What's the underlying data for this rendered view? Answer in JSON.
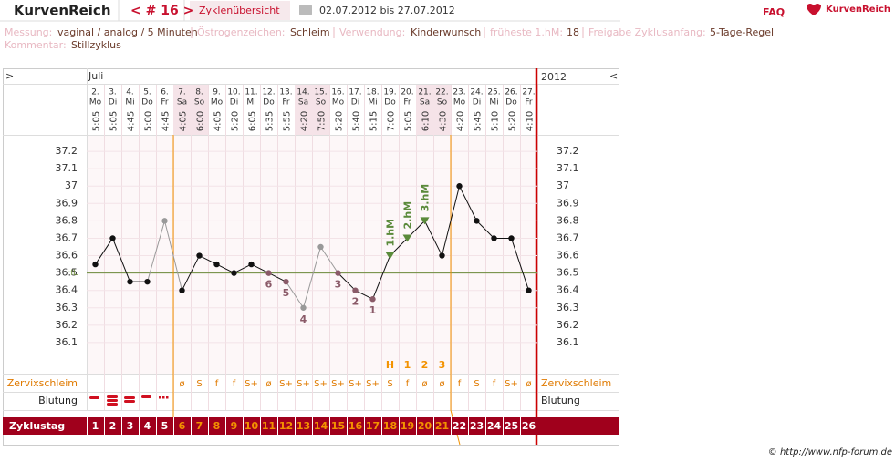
{
  "header": {
    "logo": "KurvenReich",
    "cycle": "< # 16 >",
    "tab": "Zyklenübersicht",
    "dates": "02.07.2012 bis 27.07.2012",
    "faq": "FAQ",
    "brand": "KurvenReich"
  },
  "info": [
    {
      "label": "Messung:",
      "value": "vaginal / analog / 5 Minuten"
    },
    {
      "label": "Östrogenzeichen:",
      "value": "Schleim"
    },
    {
      "label": "Verwendung:",
      "value": "Kinderwunsch"
    },
    {
      "label": "früheste 1.hM:",
      "value": 18
    },
    {
      "label": "Freigabe Zyklusanfang:",
      "value": "5-Tage-Regel"
    },
    {
      "label": "Kommentar:",
      "value": "Stillzyklus"
    }
  ],
  "chart_data": {
    "type": "line",
    "month": "Juli",
    "year": "2012",
    "nav_left": ">",
    "nav_right": "<",
    "categories": [
      "2.",
      "3.",
      "4.",
      "5.",
      "6.",
      "7.",
      "8.",
      "9.",
      "10.",
      "11.",
      "12.",
      "13.",
      "14.",
      "15.",
      "16.",
      "17.",
      "18.",
      "19.",
      "20.",
      "21.",
      "22.",
      "23.",
      "24.",
      "25.",
      "26.",
      "27."
    ],
    "weekdays": [
      "Mo",
      "Di",
      "Mi",
      "Do",
      "Fr",
      "Sa",
      "So",
      "Mo",
      "Di",
      "Mi",
      "Do",
      "Fr",
      "Sa",
      "So",
      "Mo",
      "Di",
      "Mi",
      "Do",
      "Fr",
      "Sa",
      "So",
      "Mo",
      "Di",
      "Mi",
      "Do",
      "Fr"
    ],
    "times": [
      "5:05",
      "5:05",
      "4:45",
      "5:00",
      "4:45",
      "4:05",
      "6:00",
      "4:05",
      "5:20",
      "6:05",
      "5:35",
      "5:55",
      "4:20",
      "7:50",
      "5:20",
      "5:40",
      "5:15",
      "7:00",
      "5:05",
      "6:10",
      "4:30",
      "4:20",
      "5:45",
      "5:10",
      "5:20",
      "4:10"
    ],
    "weekend": [
      false,
      false,
      false,
      false,
      false,
      true,
      true,
      false,
      false,
      false,
      false,
      false,
      true,
      true,
      false,
      false,
      false,
      false,
      false,
      true,
      true,
      false,
      false,
      false,
      false,
      false
    ],
    "weekend_color": "#f5e3e8",
    "series": [
      {
        "color": "#111111",
        "excluded_color": "#999999",
        "values": [
          36.55,
          36.7,
          36.45,
          36.45,
          36.8,
          36.4,
          36.6,
          36.55,
          36.5,
          36.55,
          36.5,
          36.45,
          36.3,
          36.65,
          36.5,
          36.4,
          36.35,
          36.6,
          36.7,
          36.8,
          36.6,
          37.0,
          36.8,
          36.7,
          36.7,
          36.4
        ],
        "point_colors": [
          "#111111",
          "#111111",
          "#111111",
          "#111111",
          "#999999",
          "#111111",
          "#111111",
          "#111111",
          "#111111",
          "#111111",
          "#8a5a68",
          "#8a5a68",
          "#999999",
          "#999999",
          "#8a5a68",
          "#8a5a68",
          "#8a5a68",
          "#5a8a3a",
          "#5a8a3a",
          "#5a8a3a",
          "#111111",
          "#111111",
          "#111111",
          "#111111",
          "#111111",
          "#111111"
        ]
      }
    ],
    "low_labels": [
      null,
      null,
      null,
      null,
      null,
      null,
      null,
      null,
      null,
      null,
      "6",
      "5",
      "4",
      null,
      "3",
      "2",
      "1",
      null,
      null,
      null,
      null,
      null,
      null,
      null,
      null,
      null
    ],
    "low_color": "#8a5a68",
    "hm_labels": [
      null,
      null,
      null,
      null,
      null,
      null,
      null,
      null,
      null,
      null,
      null,
      null,
      null,
      null,
      null,
      null,
      null,
      "1.hM",
      "2.hM",
      "3.hM",
      null,
      null,
      null,
      null,
      null,
      null
    ],
    "hm_color": "#5a8a3a",
    "peak_labels": [
      null,
      null,
      null,
      null,
      null,
      null,
      null,
      null,
      null,
      null,
      null,
      null,
      null,
      null,
      null,
      null,
      null,
      "H",
      "1",
      "2",
      "3",
      null,
      null,
      null,
      null,
      null
    ],
    "ylim": [
      36.0,
      37.3
    ],
    "yticks": [
      36.1,
      36.2,
      36.3,
      36.4,
      36.5,
      36.6,
      36.7,
      36.8,
      36.9,
      37,
      37.1,
      37.2
    ],
    "grid": true,
    "hl": 36.5,
    "hl_label": "HL",
    "hl_color": "#6a8a3a",
    "zervix_label": "Zervixschleim",
    "zervix": [
      null,
      null,
      null,
      null,
      null,
      "ø",
      "S",
      "f",
      "f",
      "S+",
      "ø",
      "S+",
      "S+",
      "S+",
      "S+",
      "S+",
      "S+",
      "S",
      "f",
      "ø",
      "ø",
      "f",
      "S",
      "f",
      "S+",
      "ø"
    ],
    "zervix_color": "#e07a00",
    "blutung_label": "Blutung",
    "cycle_label": "Zyklustag",
    "cycle_days": [
      1,
      2,
      3,
      4,
      5,
      6,
      7,
      8,
      9,
      10,
      11,
      12,
      13,
      14,
      15,
      16,
      17,
      18,
      19,
      20,
      21,
      22,
      23,
      24,
      25,
      26
    ],
    "fertile": {
      "from": 6,
      "to": 21
    },
    "fertile_color": "#f39200",
    "cycle_bg": "#a0001c"
  },
  "copyright": "© http://www.nfp-forum.de"
}
